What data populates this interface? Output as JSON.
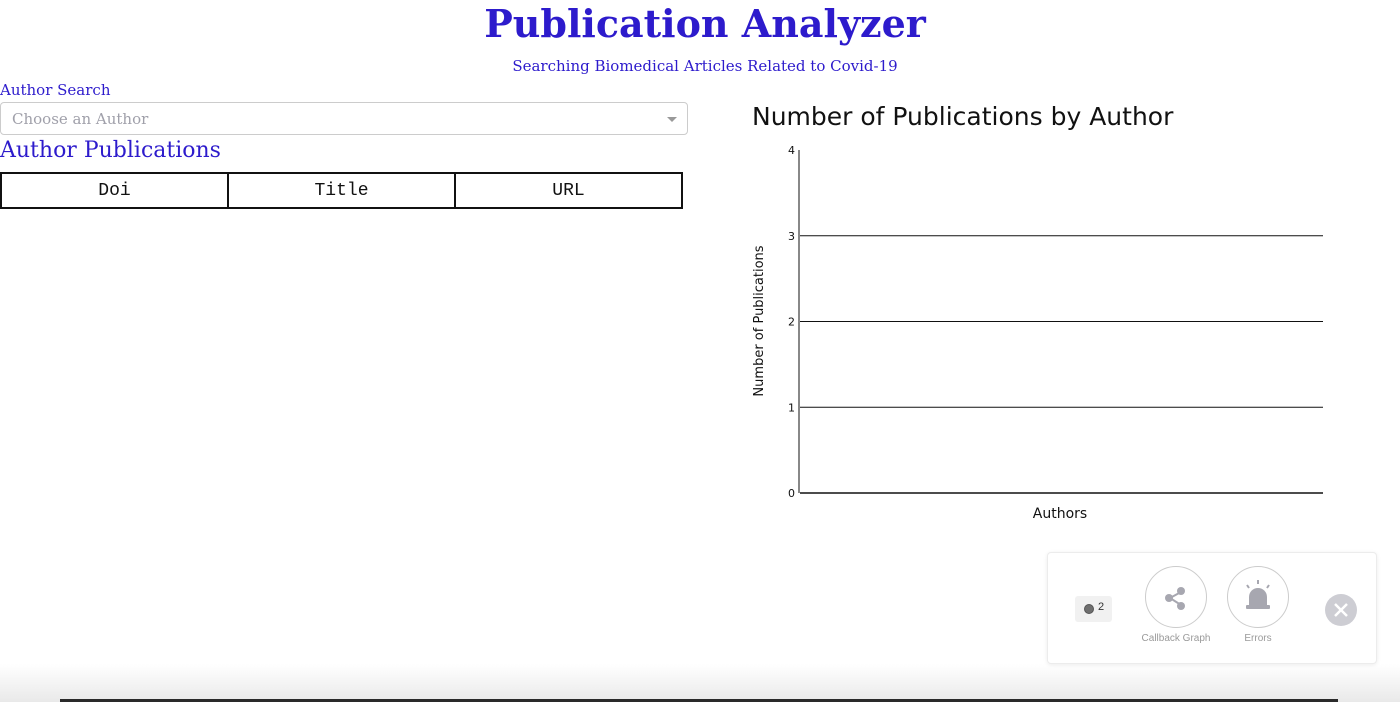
{
  "header": {
    "title": "Publication Analyzer",
    "subtitle": "Searching Biomedical Articles Related to Covid-19"
  },
  "author_search": {
    "label": "Author Search",
    "placeholder": "Choose an Author",
    "selected_value": ""
  },
  "publications": {
    "heading": "Author Publications",
    "columns": [
      "Doi",
      "Title",
      "URL"
    ],
    "rows": []
  },
  "chart_data": {
    "type": "bar",
    "title": "Number of Publications by Author",
    "xlabel": "Authors",
    "ylabel": "Number of Publications",
    "categories": [],
    "values": [],
    "ylim": [
      0,
      4
    ],
    "yticks": [
      "0",
      "1",
      "2",
      "3",
      "4"
    ],
    "grid": true
  },
  "debug_menu": {
    "callback_count": "2",
    "callback_graph_label": "Callback Graph",
    "errors_label": "Errors"
  },
  "colors": {
    "heading": "#2d1bcc",
    "icon_gray": "#a7a7b0"
  },
  "icons": {
    "dropdown": "chevron-down-icon",
    "callback_graph": "share-graph-icon",
    "errors": "alarm-bell-icon",
    "close": "close-icon",
    "status": "status-dot-icon"
  }
}
